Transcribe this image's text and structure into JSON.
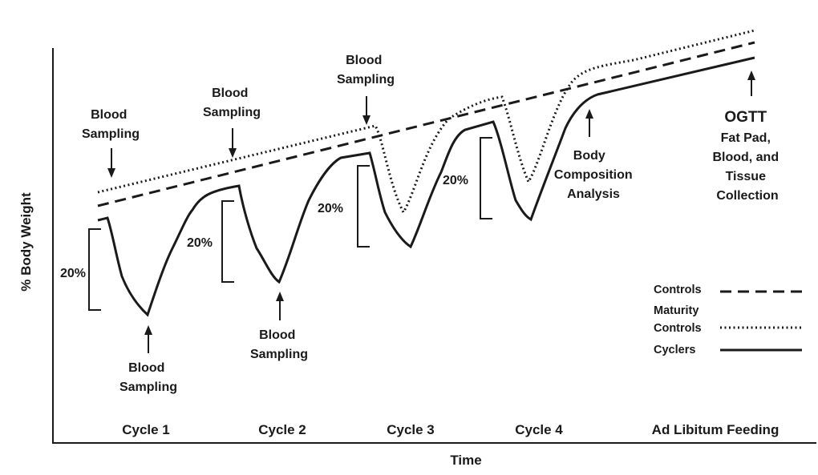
{
  "axes": {
    "x_title": "Time",
    "y_title": "% Body Weight"
  },
  "phases": [
    "Cycle 1",
    "Cycle 2",
    "Cycle 3",
    "Cycle 4",
    "Ad Libitum Feeding"
  ],
  "annotations": {
    "blood_sampling_1": [
      "Blood",
      "Sampling"
    ],
    "blood_sampling_2": [
      "Blood",
      "Sampling"
    ],
    "blood_sampling_3": [
      "Blood",
      "Sampling"
    ],
    "blood_sampling_4": [
      "Blood",
      "Sampling"
    ],
    "blood_sampling_5": [
      "Blood",
      "Sampling"
    ],
    "body_composition": [
      "Body",
      "Composition",
      "Analysis"
    ],
    "ogtt": [
      "OGTT",
      "Fat Pad,",
      "Blood, and",
      "Tissue",
      "Collection"
    ]
  },
  "percent_labels": [
    "20%",
    "20%",
    "20%",
    "20%"
  ],
  "legend": {
    "controls": "Controls",
    "maturity_controls": [
      "Maturity",
      "Controls"
    ],
    "cyclers": "Cyclers"
  },
  "colors": {
    "ink": "#1a1a1a",
    "background": "#ffffff"
  }
}
